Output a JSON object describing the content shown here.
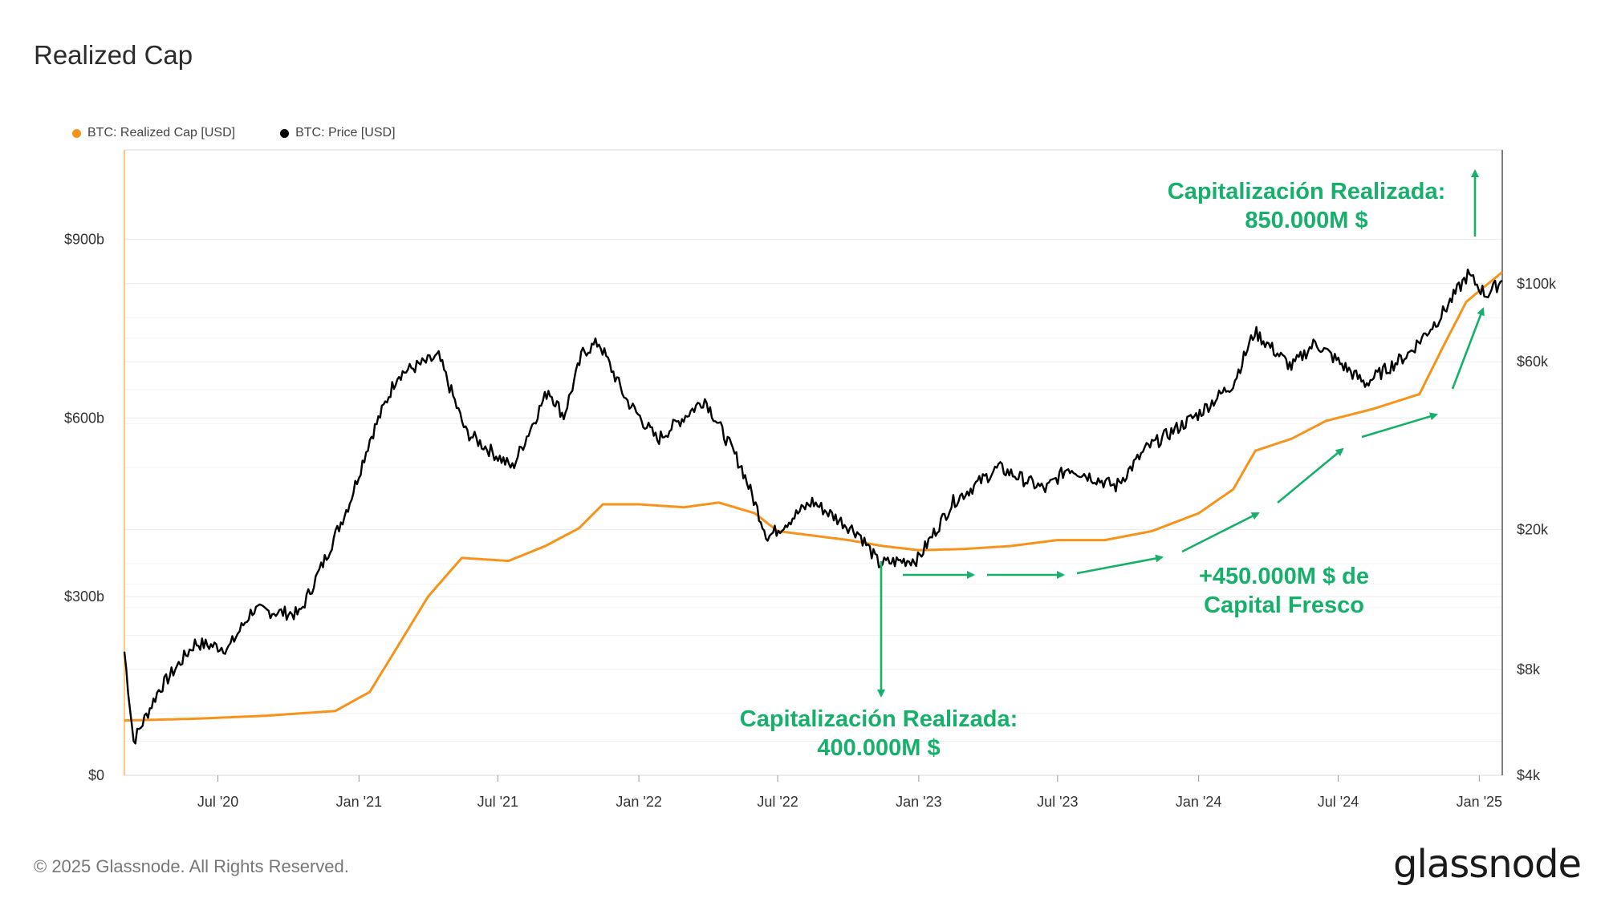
{
  "header": {
    "title": "Realized Cap"
  },
  "legend": [
    {
      "label": "BTC: Realized Cap [USD]",
      "color": "#f7931a"
    },
    {
      "label": "BTC: Price [USD]",
      "color": "#000000"
    }
  ],
  "footer": {
    "copyright": "© 2025 Glassnode. All Rights Reserved.",
    "brand": "glassnode"
  },
  "chart_data": {
    "type": "line",
    "title": "Realized Cap",
    "x_range": [
      "2020-03-01",
      "2025-01-31"
    ],
    "x_ticks": [
      "Jul '20",
      "Jan '21",
      "Jul '21",
      "Jan '22",
      "Jul '22",
      "Jan '23",
      "Jul '23",
      "Jan '24",
      "Jul '24",
      "Jan '25"
    ],
    "y_left": {
      "ticks": [
        "$0",
        "$300b",
        "$600b",
        "$900b"
      ],
      "range": [
        0,
        1050
      ],
      "unit": "billion USD"
    },
    "y_right": {
      "ticks": [
        "$4k",
        "$8k",
        "$20k",
        "$60k",
        "$100k"
      ],
      "scale": "log",
      "range": [
        4000,
        240000
      ]
    },
    "grid": true,
    "legend_position": "top-left",
    "series": [
      {
        "name": "BTC: Realized Cap [USD]",
        "axis": "left",
        "color": "#f7931a",
        "points": [
          [
            "2020-03-01",
            92
          ],
          [
            "2020-06-01",
            95
          ],
          [
            "2020-09-01",
            100
          ],
          [
            "2020-12-01",
            108
          ],
          [
            "2021-01-15",
            140
          ],
          [
            "2021-02-15",
            205
          ],
          [
            "2021-04-01",
            300
          ],
          [
            "2021-05-15",
            365
          ],
          [
            "2021-07-15",
            360
          ],
          [
            "2021-09-01",
            385
          ],
          [
            "2021-10-15",
            415
          ],
          [
            "2021-11-15",
            455
          ],
          [
            "2022-01-01",
            455
          ],
          [
            "2022-03-01",
            450
          ],
          [
            "2022-04-15",
            458
          ],
          [
            "2022-06-01",
            440
          ],
          [
            "2022-07-01",
            410
          ],
          [
            "2022-10-01",
            395
          ],
          [
            "2022-11-15",
            385
          ],
          [
            "2023-01-01",
            378
          ],
          [
            "2023-03-01",
            380
          ],
          [
            "2023-05-01",
            385
          ],
          [
            "2023-07-01",
            395
          ],
          [
            "2023-09-01",
            395
          ],
          [
            "2023-11-01",
            410
          ],
          [
            "2024-01-01",
            440
          ],
          [
            "2024-02-15",
            480
          ],
          [
            "2024-03-15",
            545
          ],
          [
            "2024-05-01",
            565
          ],
          [
            "2024-06-15",
            595
          ],
          [
            "2024-08-15",
            615
          ],
          [
            "2024-10-15",
            640
          ],
          [
            "2024-11-15",
            720
          ],
          [
            "2024-12-15",
            795
          ],
          [
            "2025-01-31",
            845
          ]
        ]
      },
      {
        "name": "BTC: Price [USD]",
        "axis": "right",
        "color": "#000000",
        "points": [
          [
            "2020-03-01",
            9000
          ],
          [
            "2020-03-13",
            5000
          ],
          [
            "2020-04-15",
            7000
          ],
          [
            "2020-06-01",
            9500
          ],
          [
            "2020-07-15",
            9200
          ],
          [
            "2020-08-15",
            11800
          ],
          [
            "2020-10-15",
            11500
          ],
          [
            "2020-11-15",
            16000
          ],
          [
            "2020-12-20",
            24000
          ],
          [
            "2021-01-15",
            36000
          ],
          [
            "2021-02-20",
            55000
          ],
          [
            "2021-03-15",
            58000
          ],
          [
            "2021-04-15",
            62000
          ],
          [
            "2021-05-20",
            38000
          ],
          [
            "2021-07-20",
            30000
          ],
          [
            "2021-09-05",
            50000
          ],
          [
            "2021-09-25",
            42000
          ],
          [
            "2021-10-20",
            64000
          ],
          [
            "2021-11-10",
            68000
          ],
          [
            "2021-12-15",
            47000
          ],
          [
            "2022-01-25",
            36000
          ],
          [
            "2022-03-28",
            47000
          ],
          [
            "2022-05-15",
            30000
          ],
          [
            "2022-06-18",
            19000
          ],
          [
            "2022-08-15",
            24000
          ],
          [
            "2022-10-15",
            19500
          ],
          [
            "2022-11-10",
            16000
          ],
          [
            "2022-12-31",
            16500
          ],
          [
            "2023-02-15",
            24000
          ],
          [
            "2023-04-15",
            30000
          ],
          [
            "2023-06-15",
            26000
          ],
          [
            "2023-07-15",
            30000
          ],
          [
            "2023-09-15",
            26500
          ],
          [
            "2023-10-25",
            34000
          ],
          [
            "2023-12-31",
            42500
          ],
          [
            "2024-02-15",
            52000
          ],
          [
            "2024-03-14",
            73000
          ],
          [
            "2024-05-01",
            58000
          ],
          [
            "2024-06-01",
            68000
          ],
          [
            "2024-08-05",
            52000
          ],
          [
            "2024-09-30",
            63000
          ],
          [
            "2024-11-10",
            80000
          ],
          [
            "2024-12-17",
            106000
          ],
          [
            "2025-01-10",
            93000
          ],
          [
            "2025-01-31",
            102000
          ]
        ]
      }
    ],
    "annotations": [
      {
        "lines": [
          "Capitalización Realizada:",
          "850.000M $"
        ]
      },
      {
        "lines": [
          "Capitalización Realizada:",
          "400.000M $"
        ]
      },
      {
        "lines": [
          "+450.000M $ de",
          "Capital Fresco"
        ]
      }
    ]
  }
}
